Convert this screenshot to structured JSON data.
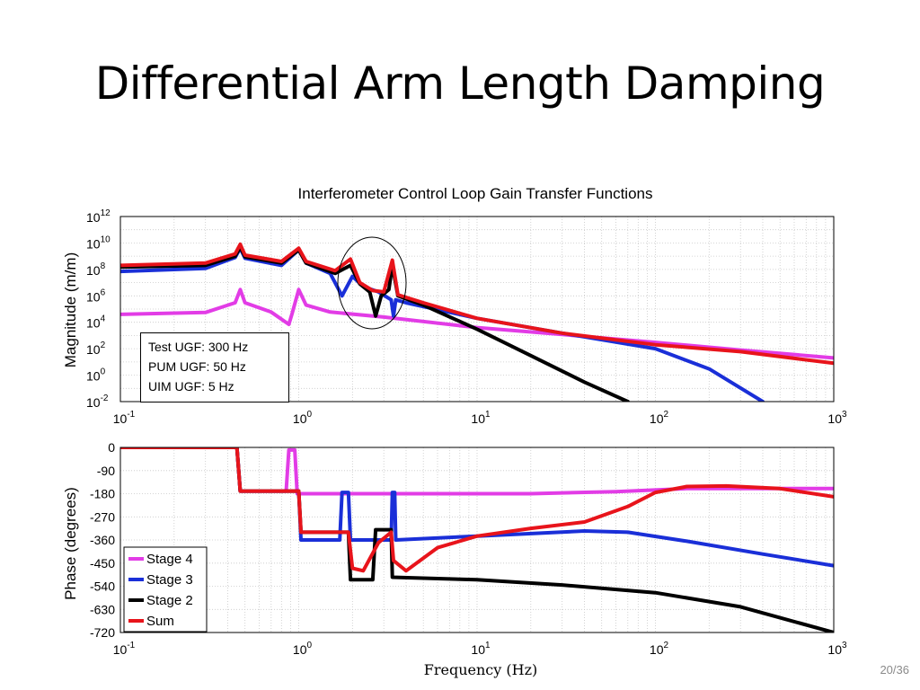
{
  "slide": {
    "title": "Differential Arm Length Damping",
    "page_number": "20/36"
  },
  "annotation_box": {
    "lines": [
      "Test UGF: 300 Hz",
      "PUM UGF: 50 Hz",
      "UIM UGF:  5 Hz"
    ]
  },
  "chart_data": [
    {
      "type": "line",
      "title": "Interferometer Control Loop Gain Transfer Functions",
      "xlabel": "",
      "ylabel": "Magnitude (m/m)",
      "xscale": "log",
      "yscale": "log",
      "xlim": [
        0.1,
        1000
      ],
      "ylim": [
        0.01,
        1000000000000
      ],
      "x_tick_labels": [
        [
          "10",
          "-1"
        ],
        [
          "10",
          "0"
        ],
        [
          "10",
          "1"
        ],
        [
          "10",
          "2"
        ],
        [
          "10",
          "3"
        ]
      ],
      "y_tick_labels": [
        [
          "10",
          "12"
        ],
        [
          "10",
          "10"
        ],
        [
          "10",
          "8"
        ],
        [
          "10",
          "6"
        ],
        [
          "10",
          "4"
        ],
        [
          "10",
          "2"
        ],
        [
          "10",
          "0"
        ],
        [
          "10",
          "-2"
        ]
      ],
      "grid": true,
      "annotation": "ellipse circling notches around 2-3.5 Hz",
      "series": [
        {
          "name": "Stage 4",
          "color": "#e23ce6",
          "points": [
            [
              0.1,
              40000
            ],
            [
              0.3,
              55000
            ],
            [
              0.44,
              300000
            ],
            [
              0.47,
              3000000
            ],
            [
              0.5,
              300000
            ],
            [
              0.7,
              60000
            ],
            [
              0.88,
              7000
            ],
            [
              0.92,
              50000
            ],
            [
              1.0,
              3000000
            ],
            [
              1.1,
              200000
            ],
            [
              1.5,
              60000
            ],
            [
              3,
              25000
            ],
            [
              10,
              4000
            ],
            [
              30,
              1200
            ],
            [
              100,
              300
            ],
            [
              300,
              80
            ],
            [
              1000,
              20
            ]
          ]
        },
        {
          "name": "Stage 3",
          "color": "#1a2fd8",
          "points": [
            [
              0.1,
              70000000
            ],
            [
              0.3,
              120000000
            ],
            [
              0.44,
              800000000
            ],
            [
              0.47,
              4000000000
            ],
            [
              0.5,
              700000000
            ],
            [
              0.8,
              200000000
            ],
            [
              1.0,
              3000000000
            ],
            [
              1.1,
              300000000
            ],
            [
              1.5,
              50000000
            ],
            [
              1.75,
              1000000
            ],
            [
              2.0,
              30000000
            ],
            [
              2.3,
              5000000
            ],
            [
              2.8,
              2000000
            ],
            [
              3.3,
              500000
            ],
            [
              3.4,
              30000
            ],
            [
              3.5,
              500000
            ],
            [
              4,
              300000
            ],
            [
              10,
              20000
            ],
            [
              30,
              1500
            ],
            [
              100,
              100
            ],
            [
              200,
              3
            ],
            [
              400,
              0.01
            ]
          ]
        },
        {
          "name": "Stage 2",
          "color": "#000000",
          "points": [
            [
              0.1,
              150000000
            ],
            [
              0.3,
              200000000
            ],
            [
              0.44,
              1000000000
            ],
            [
              0.47,
              5000000000
            ],
            [
              0.5,
              900000000
            ],
            [
              0.8,
              300000000
            ],
            [
              1.0,
              3000000000
            ],
            [
              1.1,
              300000000
            ],
            [
              1.6,
              50000000
            ],
            [
              1.95,
              200000000
            ],
            [
              2.2,
              8000000
            ],
            [
              2.5,
              2000000
            ],
            [
              2.7,
              30000
            ],
            [
              2.9,
              1000000
            ],
            [
              3.2,
              3000000
            ],
            [
              3.35,
              200000000
            ],
            [
              3.6,
              1000000
            ],
            [
              5,
              200000
            ],
            [
              10,
              3000
            ],
            [
              20,
              30
            ],
            [
              40,
              0.3
            ],
            [
              70,
              0.01
            ]
          ]
        },
        {
          "name": "Sum",
          "color": "#e8141b",
          "points": [
            [
              0.1,
              200000000
            ],
            [
              0.3,
              300000000
            ],
            [
              0.44,
              1500000000
            ],
            [
              0.47,
              8000000000
            ],
            [
              0.5,
              1200000000
            ],
            [
              0.8,
              400000000
            ],
            [
              1.0,
              4000000000
            ],
            [
              1.1,
              400000000
            ],
            [
              1.6,
              80000000
            ],
            [
              1.95,
              600000000
            ],
            [
              2.2,
              10000000
            ],
            [
              2.6,
              2500000
            ],
            [
              3.0,
              2000000
            ],
            [
              3.35,
              500000000
            ],
            [
              3.6,
              1200000
            ],
            [
              5,
              300000
            ],
            [
              10,
              20000
            ],
            [
              30,
              1500
            ],
            [
              100,
              200
            ],
            [
              300,
              60
            ],
            [
              1000,
              8
            ]
          ]
        }
      ]
    },
    {
      "type": "line",
      "title": "",
      "xlabel": "Frequency (Hz)",
      "ylabel": "Phase (degrees)",
      "xscale": "log",
      "xlim": [
        0.1,
        1000
      ],
      "ylim": [
        -720,
        0
      ],
      "x_tick_labels": [
        [
          "10",
          "-1"
        ],
        [
          "10",
          "0"
        ],
        [
          "10",
          "1"
        ],
        [
          "10",
          "2"
        ],
        [
          "10",
          "3"
        ]
      ],
      "y_ticks": [
        0,
        -90,
        -180,
        -270,
        -360,
        -450,
        -540,
        -630,
        -720
      ],
      "y_tick_labels": [
        "0",
        "-90",
        "-180",
        "-270",
        "-360",
        "-450",
        "-540",
        "-630",
        "-720"
      ],
      "grid": true,
      "legend_position": "bottom-left",
      "series": [
        {
          "name": "Stage 4",
          "color": "#e23ce6",
          "points": [
            [
              0.1,
              0
            ],
            [
              0.45,
              0
            ],
            [
              0.47,
              -170
            ],
            [
              0.85,
              -170
            ],
            [
              0.88,
              -10
            ],
            [
              0.95,
              -10
            ],
            [
              0.98,
              -180
            ],
            [
              5,
              -180
            ],
            [
              20,
              -180
            ],
            [
              60,
              -172
            ],
            [
              150,
              -160
            ],
            [
              1000,
              -160
            ]
          ]
        },
        {
          "name": "Stage 3",
          "color": "#1a2fd8",
          "points": [
            [
              0.1,
              0
            ],
            [
              0.45,
              0
            ],
            [
              0.47,
              -170
            ],
            [
              1.0,
              -170
            ],
            [
              1.03,
              -360
            ],
            [
              1.7,
              -360
            ],
            [
              1.75,
              -175
            ],
            [
              1.9,
              -175
            ],
            [
              1.95,
              -360
            ],
            [
              3.3,
              -360
            ],
            [
              3.35,
              -175
            ],
            [
              3.45,
              -175
            ],
            [
              3.5,
              -360
            ],
            [
              10,
              -345
            ],
            [
              40,
              -325
            ],
            [
              70,
              -330
            ],
            [
              150,
              -365
            ],
            [
              400,
              -415
            ],
            [
              1000,
              -460
            ]
          ]
        },
        {
          "name": "Stage 2",
          "color": "#000000",
          "points": [
            [
              0.1,
              0
            ],
            [
              0.45,
              0
            ],
            [
              0.47,
              -170
            ],
            [
              1.0,
              -170
            ],
            [
              1.03,
              -330
            ],
            [
              1.9,
              -330
            ],
            [
              1.95,
              -515
            ],
            [
              2.6,
              -515
            ],
            [
              2.7,
              -320
            ],
            [
              3.3,
              -320
            ],
            [
              3.35,
              -505
            ],
            [
              10,
              -515
            ],
            [
              30,
              -535
            ],
            [
              100,
              -565
            ],
            [
              300,
              -620
            ],
            [
              1000,
              -720
            ]
          ]
        },
        {
          "name": "Sum",
          "color": "#e8141b",
          "points": [
            [
              0.1,
              0
            ],
            [
              0.45,
              0
            ],
            [
              0.47,
              -170
            ],
            [
              1.0,
              -170
            ],
            [
              1.03,
              -330
            ],
            [
              1.9,
              -330
            ],
            [
              2.0,
              -470
            ],
            [
              2.3,
              -480
            ],
            [
              2.8,
              -370
            ],
            [
              3.3,
              -330
            ],
            [
              3.4,
              -440
            ],
            [
              4,
              -480
            ],
            [
              6,
              -390
            ],
            [
              10,
              -345
            ],
            [
              20,
              -315
            ],
            [
              40,
              -290
            ],
            [
              70,
              -230
            ],
            [
              100,
              -175
            ],
            [
              150,
              -152
            ],
            [
              250,
              -150
            ],
            [
              500,
              -160
            ],
            [
              1000,
              -192
            ]
          ]
        }
      ]
    }
  ]
}
